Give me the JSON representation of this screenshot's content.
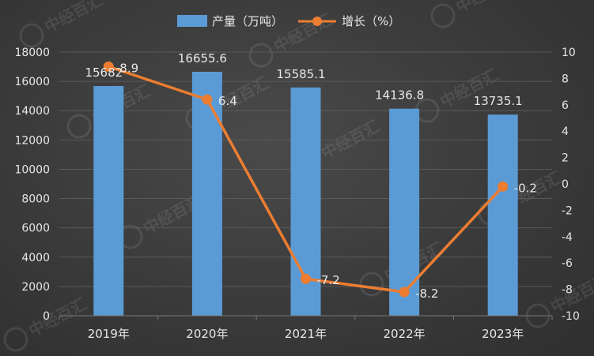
{
  "chart_data": {
    "type": "bar+line",
    "categories": [
      "2019年",
      "2020年",
      "2021年",
      "2022年",
      "2023年"
    ],
    "series": [
      {
        "name": "产量（万吨）",
        "type": "bar",
        "axis": "left",
        "values": [
          15682,
          16655.6,
          15585.1,
          14136.8,
          13735.1
        ],
        "labels": [
          "15682",
          "16655.6",
          "15585.1",
          "14136.8",
          "13735.1"
        ],
        "color": "#5b9bd5"
      },
      {
        "name": "增长（%）",
        "type": "line",
        "axis": "right",
        "values": [
          8.9,
          6.4,
          -7.2,
          -8.2,
          -0.2
        ],
        "labels": [
          "8.9",
          "6.4",
          "-7.2",
          "-8.2",
          "-0.2"
        ],
        "color": "#ed7d31"
      }
    ],
    "y_left": {
      "min": 0,
      "max": 18000,
      "step": 2000
    },
    "y_right": {
      "min": -10,
      "max": 10,
      "step": 2
    },
    "legend_position": "top-center",
    "grid": true,
    "watermark": "中经百汇"
  }
}
